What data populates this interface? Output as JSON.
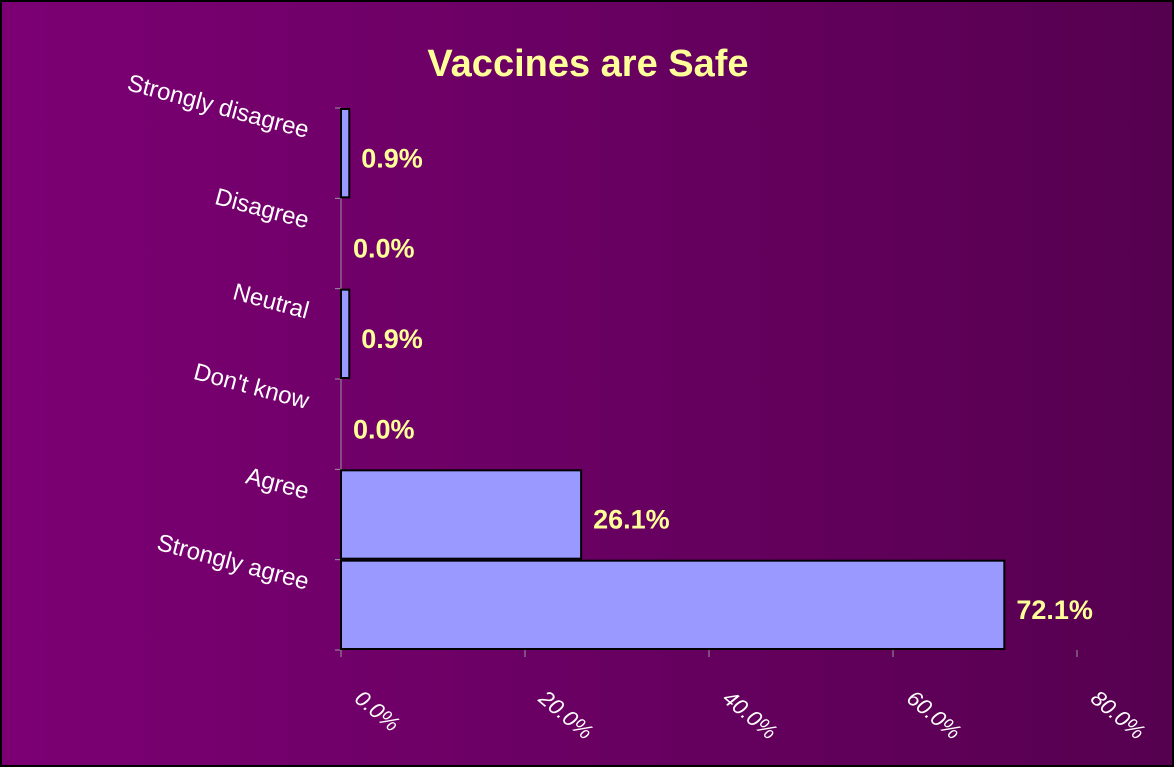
{
  "chart_data": {
    "type": "bar",
    "orientation": "horizontal",
    "title": "Vaccines are Safe",
    "categories": [
      "Strongly disagree",
      "Disagree",
      "Neutral",
      "Don't know",
      "Agree",
      "Strongly agree"
    ],
    "values": [
      0.9,
      0.0,
      0.9,
      0.0,
      26.1,
      72.1
    ],
    "value_labels": [
      "0.9%",
      "0.0%",
      "0.9%",
      "0.0%",
      "26.1%",
      "72.1%"
    ],
    "color": "#9999ff",
    "xlim": [
      0,
      80
    ],
    "xticks": [
      {
        "value": 0,
        "label": "0.0%"
      },
      {
        "value": 20,
        "label": "20.0%"
      },
      {
        "value": 40,
        "label": "40.0%"
      },
      {
        "value": 60,
        "label": "60.0%"
      },
      {
        "value": 80,
        "label": "80.0%"
      }
    ]
  }
}
